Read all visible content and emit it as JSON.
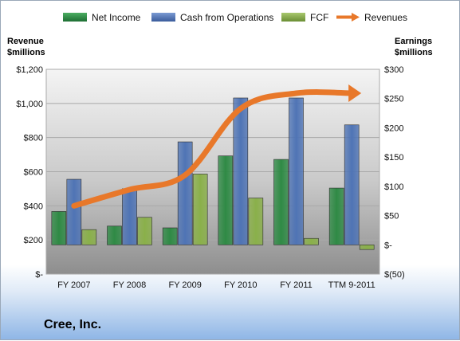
{
  "chart_data": {
    "type": "bar",
    "categories": [
      "FY 2007",
      "FY 2008",
      "FY 2009",
      "FY 2010",
      "FY 2011",
      "TTM 9-2011"
    ],
    "series": [
      {
        "name": "Net Income",
        "axis": "right",
        "color": "#2f8a45",
        "values": [
          57,
          32,
          29,
          152,
          146,
          97
        ]
      },
      {
        "name": "Cash from Operations",
        "axis": "right",
        "color": "#4f74b5",
        "values": [
          112,
          96,
          176,
          251,
          251,
          205
        ]
      },
      {
        "name": "FCF",
        "axis": "right",
        "color": "#8ab04a",
        "values": [
          26,
          47,
          121,
          80,
          11,
          -8
        ]
      },
      {
        "name": "Revenues",
        "axis": "left",
        "type": "line",
        "color": "#e8782a",
        "values": [
          400,
          495,
          580,
          970,
          1060,
          1060
        ]
      }
    ],
    "left_axis": {
      "title_line1": "Revenue",
      "title_line2": "$millions",
      "ylim": [
        0,
        1200
      ],
      "ticks": [
        0,
        200,
        400,
        600,
        800,
        1000,
        1200
      ],
      "tick_labels": [
        "$-",
        "$200",
        "$400",
        "$600",
        "$800",
        "$1,000",
        "$1,200"
      ]
    },
    "right_axis": {
      "title_line1": "Earnings",
      "title_line2": "$millions",
      "ylim": [
        -50,
        300
      ],
      "ticks": [
        -50,
        0,
        50,
        100,
        150,
        200,
        250,
        300
      ],
      "tick_labels": [
        "$(50)",
        "$-",
        "$50",
        "$100",
        "$150",
        "$200",
        "$250",
        "$300"
      ]
    },
    "grid": true,
    "legend_position": "top"
  },
  "company": "Cree, Inc."
}
